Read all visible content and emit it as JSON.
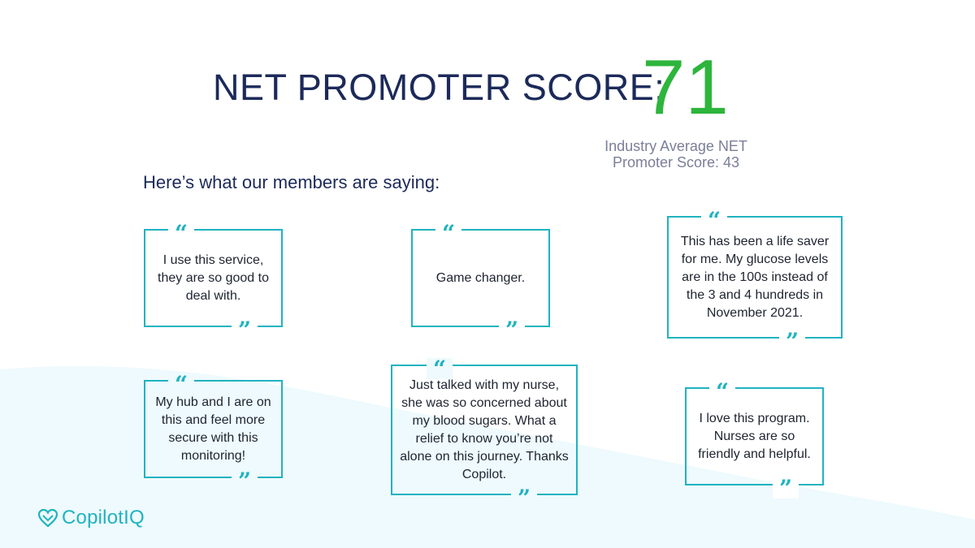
{
  "heading": {
    "title": "NET PROMOTER SCORE:",
    "score": "71",
    "industry_line1": "Industry Average NET",
    "industry_line2": "Promoter Score: 43"
  },
  "intro": "Here’s what our members are saying:",
  "quote_marks": {
    "open": "“",
    "close": "”"
  },
  "testimonials": [
    {
      "text": "I use this service, they are so good to deal with."
    },
    {
      "text": "Game changer."
    },
    {
      "text": "This has been a life saver for me. My glucose levels are in the 100s instead of the 3 and 4 hundreds in November 2021."
    },
    {
      "text": "My hub and I are on this and feel more secure with this monitoring!"
    },
    {
      "text": "Just talked with my nurse, she was so concerned about my blood sugars. What a relief to know you’re not alone on this journey. Thanks Copilot."
    },
    {
      "text": "I love this program. Nurses are so friendly and helpful."
    }
  ],
  "brand": {
    "name": "CopilotIQ",
    "accent": "#1fb3c1",
    "score_color": "#2db53c",
    "heading_color": "#1c2a5a"
  }
}
